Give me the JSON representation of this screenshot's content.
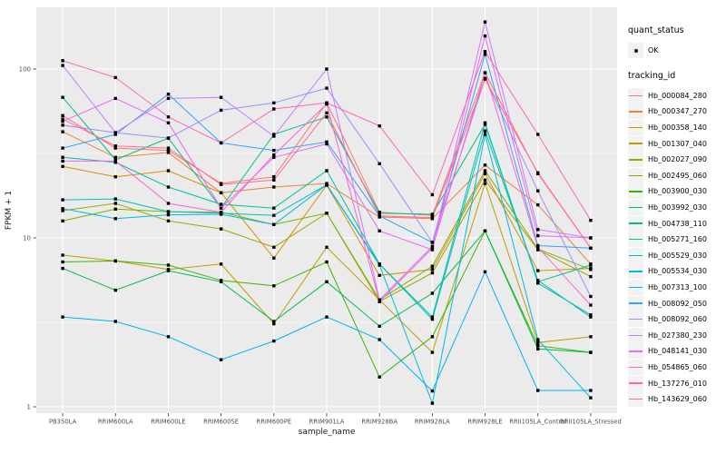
{
  "colors": {
    "panel_background": "#EBEBEB",
    "gridline": "#FFFFFF",
    "axis_text": "#4D4D4D",
    "axis_title_text": "#1A1A1A",
    "legend_key_background": "#F2F2F2",
    "point_marker": "#000000"
  },
  "chart_data": {
    "type": "line",
    "title": "",
    "xlabel": "sample_name",
    "ylabel": "FPKM + 1",
    "y_scale": "log10",
    "ylim": [
      0.92,
      232
    ],
    "y_major_ticks": [
      1,
      10,
      100
    ],
    "y_tick_labels": [
      "1",
      "10",
      "100"
    ],
    "y_minor_gridlines": [
      3.1623,
      31.623
    ],
    "grid": "on",
    "legend_position": "right",
    "point_marker": "black-point",
    "quant_status": {
      "title": "quant_status",
      "items": [
        {
          "label": "OK",
          "marker": "point",
          "color": "#000000"
        }
      ]
    },
    "legend_title": "tracking_id",
    "categories": [
      "PB350LA",
      "RRIM600LA",
      "RRIM600LE",
      "RRIM600SE",
      "RRIM600PE",
      "RRIM901LA",
      "RRIM928BA",
      "RRIM928LA",
      "RRIM928LE",
      "RRII105LA_Control",
      "RRII105LA_Stressed"
    ],
    "series": [
      {
        "name": "Hb_000084_280",
        "color": "#F8766D",
        "values": [
          53,
          34,
          33,
          21,
          23,
          63,
          14.2,
          13.6,
          95,
          24,
          8.7
        ]
      },
      {
        "name": "Hb_000347_270",
        "color": "#EA8331",
        "values": [
          42.5,
          30,
          32,
          18.5,
          20,
          21,
          13.3,
          13,
          27,
          15.7,
          7
        ]
      },
      {
        "name": "Hb_000358_140",
        "color": "#D89000",
        "values": [
          26.5,
          23,
          25,
          18.5,
          7.6,
          20.5,
          6,
          6.5,
          24,
          6.4,
          6.6
        ]
      },
      {
        "name": "Hb_001307_040",
        "color": "#C09B00",
        "values": [
          7.9,
          7.3,
          6.5,
          7,
          3.1,
          8.8,
          4.3,
          2.1,
          21,
          2.4,
          2.6
        ]
      },
      {
        "name": "Hb_002027_090",
        "color": "#A3A500",
        "values": [
          14.5,
          16,
          12.6,
          11.3,
          8.8,
          14,
          4.2,
          6.2,
          22,
          8.5,
          5.9
        ]
      },
      {
        "name": "Hb_002495_060",
        "color": "#7CAE00",
        "values": [
          12.6,
          14.8,
          14.3,
          14.2,
          12,
          14,
          4.3,
          6.8,
          25,
          8.6,
          6.5
        ]
      },
      {
        "name": "Hb_003900_030",
        "color": "#39B600",
        "values": [
          7.2,
          7.3,
          6.9,
          5.6,
          5.2,
          7.2,
          1.5,
          2.6,
          11,
          2.3,
          2.1
        ]
      },
      {
        "name": "Hb_003992_030",
        "color": "#00BB4E",
        "values": [
          6.6,
          4.9,
          6.4,
          5.5,
          3.2,
          5.5,
          3.0,
          4.7,
          11,
          2.2,
          2.1
        ]
      },
      {
        "name": "Hb_004738_110",
        "color": "#00BF7D",
        "values": [
          68,
          29,
          39,
          15,
          41,
          52,
          14,
          13.8,
          47,
          5.5,
          6.9
        ]
      },
      {
        "name": "Hb_005271_160",
        "color": "#00C1A3",
        "values": [
          30,
          28,
          20,
          15.8,
          15,
          25,
          7.0,
          3.3,
          43,
          5.6,
          3.4
        ]
      },
      {
        "name": "Hb_005529_030",
        "color": "#00BFC4",
        "values": [
          16.8,
          17,
          14.3,
          14,
          13.6,
          20.6,
          7.0,
          3.4,
          48,
          5.4,
          3.5
        ]
      },
      {
        "name": "Hb_005534_030",
        "color": "#00BAE0",
        "values": [
          14.9,
          13,
          13.7,
          13.8,
          12,
          20.6,
          6.9,
          1.05,
          41,
          2.5,
          1.13
        ]
      },
      {
        "name": "Hb_007313_100",
        "color": "#00B0F6",
        "values": [
          3.4,
          3.2,
          2.6,
          1.9,
          2.45,
          3.4,
          2.5,
          1.24,
          6.3,
          1.25,
          1.25
        ]
      },
      {
        "name": "Hb_008092_050",
        "color": "#35A2FF",
        "values": [
          34,
          41,
          71,
          36.5,
          33,
          37,
          13.5,
          9.4,
          122,
          9,
          8.7
        ]
      },
      {
        "name": "Hb_008092_060",
        "color": "#9590FF",
        "values": [
          46.5,
          42,
          39,
          57,
          63,
          77,
          27.5,
          9.4,
          88,
          19,
          4.5
        ]
      },
      {
        "name": "Hb_027380_230",
        "color": "#C77CFF",
        "values": [
          105,
          42,
          67,
          68,
          40,
          100,
          4.3,
          8.9,
          190,
          11.2,
          10
        ]
      },
      {
        "name": "Hb_048141_030",
        "color": "#E76BF3",
        "values": [
          49,
          67,
          48,
          15,
          30,
          36,
          11,
          8.5,
          157,
          10.3,
          10
        ]
      },
      {
        "name": "Hb_054865_060",
        "color": "#FA62DB",
        "values": [
          28.5,
          28.5,
          16,
          14.2,
          31,
          62,
          4.2,
          8.7,
          95,
          8.8,
          4
        ]
      },
      {
        "name": "Hb_137276_010",
        "color": "#FF62BC",
        "values": [
          112,
          89,
          52,
          36.5,
          58,
          63,
          46,
          18,
          127,
          41,
          12.7
        ]
      },
      {
        "name": "Hb_143629_060",
        "color": "#FF6A98",
        "values": [
          50.5,
          35,
          34,
          20.7,
          22,
          55,
          13.5,
          13.2,
          87,
          24.3,
          8.7
        ]
      }
    ]
  }
}
